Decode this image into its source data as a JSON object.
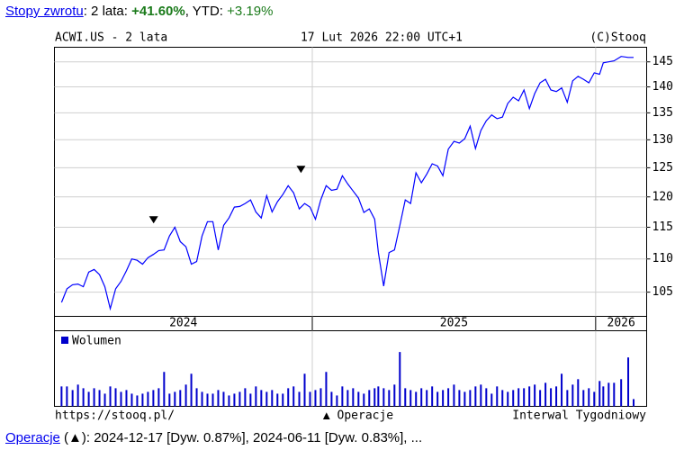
{
  "header": {
    "link": "Stopy zwrotu",
    "period": ": 2 lata: ",
    "total": "+41.60%",
    "ytd_label": ", YTD: ",
    "ytd": "+3.19%"
  },
  "chart_data": {
    "type": "line",
    "title": "ACWI.US - 2 lata",
    "date": "17 Lut 2026 22:00 UTC+1",
    "copyright": "(C)Stooq",
    "color": "#0000ff",
    "log": true,
    "grid": true,
    "xlim": [
      2024.09,
      2026.18
    ],
    "xticks": [
      2025,
      2026
    ],
    "year_labels": [
      2024,
      2025,
      2026
    ],
    "ylim": [
      101.5,
      148
    ],
    "yticks": [
      105,
      110,
      115,
      120,
      125,
      130,
      135,
      140,
      145
    ],
    "x": [
      2024.115,
      2024.134,
      2024.154,
      2024.173,
      2024.192,
      2024.211,
      2024.23,
      2024.249,
      2024.268,
      2024.287,
      2024.306,
      2024.325,
      2024.344,
      2024.363,
      2024.382,
      2024.401,
      2024.42,
      2024.439,
      2024.458,
      2024.477,
      2024.496,
      2024.515,
      2024.534,
      2024.554,
      2024.573,
      2024.592,
      2024.611,
      2024.63,
      2024.649,
      2024.668,
      2024.687,
      2024.706,
      2024.725,
      2024.744,
      2024.763,
      2024.782,
      2024.801,
      2024.82,
      2024.839,
      2024.858,
      2024.877,
      2024.896,
      2024.915,
      2024.934,
      2024.954,
      2024.973,
      2024.992,
      2025.011,
      2025.03,
      2025.049,
      2025.068,
      2025.087,
      2025.106,
      2025.125,
      2025.144,
      2025.163,
      2025.182,
      2025.201,
      2025.22,
      2025.233,
      2025.252,
      2025.271,
      2025.29,
      2025.309,
      2025.328,
      2025.347,
      2025.366,
      2025.385,
      2025.404,
      2025.423,
      2025.442,
      2025.461,
      2025.48,
      2025.5,
      2025.519,
      2025.538,
      2025.557,
      2025.576,
      2025.595,
      2025.614,
      2025.633,
      2025.652,
      2025.671,
      2025.69,
      2025.709,
      2025.728,
      2025.747,
      2025.766,
      2025.785,
      2025.804,
      2025.823,
      2025.842,
      2025.861,
      2025.88,
      2025.9,
      2025.919,
      2025.938,
      2025.957,
      2025.976,
      2025.995,
      2026.014,
      2026.027,
      2026.046,
      2026.065,
      2026.09,
      2026.115,
      2026.134
    ],
    "values": [
      103.5,
      105.5,
      106.1,
      106.2,
      105.8,
      108.0,
      108.4,
      107.6,
      105.8,
      102.6,
      105.5,
      106.6,
      108.2,
      110.0,
      109.8,
      109.2,
      110.2,
      110.7,
      111.3,
      111.4,
      113.6,
      115.0,
      112.7,
      111.9,
      109.2,
      109.6,
      113.6,
      115.9,
      115.9,
      111.4,
      115.3,
      116.5,
      118.3,
      118.4,
      118.9,
      119.5,
      117.5,
      116.5,
      120.2,
      117.5,
      119.2,
      120.4,
      121.9,
      120.7,
      118.0,
      118.9,
      118.3,
      116.3,
      119.5,
      121.9,
      121.1,
      121.3,
      123.6,
      122.2,
      121.0,
      119.8,
      117.4,
      118.0,
      116.3,
      111.0,
      105.9,
      111.0,
      111.4,
      115.3,
      119.5,
      118.9,
      124.1,
      122.4,
      123.9,
      125.7,
      125.3,
      123.6,
      128.3,
      129.7,
      129.4,
      130.2,
      132.5,
      128.4,
      131.7,
      133.5,
      134.6,
      133.9,
      134.2,
      136.8,
      138.0,
      137.3,
      139.4,
      135.8,
      138.7,
      140.8,
      141.5,
      139.4,
      139.1,
      139.8,
      137.0,
      141.2,
      142.1,
      141.5,
      140.8,
      142.8,
      142.5,
      144.8,
      145.0,
      145.2,
      146.1,
      145.9,
      145.9
    ],
    "operations": [
      {
        "x": 2024.44
      },
      {
        "x": 2024.96
      }
    ],
    "volume": {
      "name": "Wolumen",
      "color": "#0000cc",
      "ylim": [
        0,
        80
      ],
      "values": [
        22,
        22,
        18,
        24,
        20,
        16,
        20,
        18,
        14,
        22,
        20,
        16,
        18,
        14,
        12,
        14,
        16,
        18,
        20,
        38,
        14,
        16,
        18,
        24,
        36,
        20,
        16,
        14,
        14,
        18,
        16,
        12,
        14,
        16,
        20,
        14,
        22,
        18,
        16,
        18,
        14,
        14,
        20,
        22,
        16,
        36,
        16,
        18,
        20,
        38,
        16,
        12,
        22,
        18,
        20,
        16,
        14,
        18,
        20,
        22,
        20,
        18,
        24,
        60,
        20,
        18,
        16,
        20,
        18,
        22,
        16,
        18,
        20,
        24,
        18,
        16,
        18,
        22,
        24,
        20,
        14,
        22,
        18,
        16,
        18,
        20,
        20,
        22,
        24,
        18,
        26,
        20,
        22,
        36,
        18,
        24,
        30,
        18,
        20,
        16,
        28,
        22,
        26,
        26,
        30,
        54,
        8
      ]
    },
    "footer_left": "https://stooq.pl/",
    "operations_label": "▲ Operacje",
    "interval": "Interwal Tygodniowy"
  },
  "footer": {
    "link": "Operacje",
    "text": " (▲): 2024-12-17 [Dyw. 0.87%], 2024-06-11 [Dyw. 0.83%], ..."
  }
}
